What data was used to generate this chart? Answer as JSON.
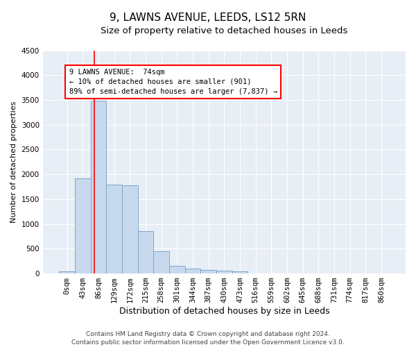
{
  "title": "9, LAWNS AVENUE, LEEDS, LS12 5RN",
  "subtitle": "Size of property relative to detached houses in Leeds",
  "xlabel": "Distribution of detached houses by size in Leeds",
  "ylabel": "Number of detached properties",
  "bar_color": "#c8d9ee",
  "bar_edge_color": "#7ba7cc",
  "background_color": "#e8eef5",
  "grid_color": "#ffffff",
  "categories": [
    "0sqm",
    "43sqm",
    "86sqm",
    "129sqm",
    "172sqm",
    "215sqm",
    "258sqm",
    "301sqm",
    "344sqm",
    "387sqm",
    "430sqm",
    "473sqm",
    "516sqm",
    "559sqm",
    "602sqm",
    "645sqm",
    "688sqm",
    "731sqm",
    "774sqm",
    "817sqm",
    "860sqm"
  ],
  "values": [
    40,
    1920,
    3490,
    1790,
    1780,
    850,
    450,
    160,
    100,
    70,
    55,
    45,
    0,
    0,
    0,
    0,
    0,
    0,
    0,
    0,
    0
  ],
  "ylim": [
    0,
    4500
  ],
  "yticks": [
    0,
    500,
    1000,
    1500,
    2000,
    2500,
    3000,
    3500,
    4000,
    4500
  ],
  "property_line_x": 1.72,
  "annotation_text": "9 LAWNS AVENUE:  74sqm\n← 10% of detached houses are smaller (901)\n89% of semi-detached houses are larger (7,837) →",
  "annotation_box_color": "white",
  "annotation_box_edge_color": "red",
  "vline_color": "red",
  "footer": "Contains HM Land Registry data © Crown copyright and database right 2024.\nContains public sector information licensed under the Open Government Licence v3.0.",
  "title_fontsize": 11,
  "subtitle_fontsize": 9.5,
  "xlabel_fontsize": 9,
  "ylabel_fontsize": 8,
  "tick_fontsize": 7.5,
  "footer_fontsize": 6.5,
  "annot_fontsize": 7.5
}
